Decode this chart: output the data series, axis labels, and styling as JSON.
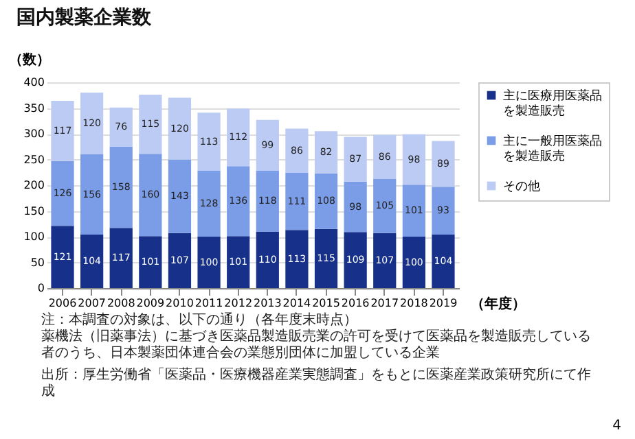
{
  "chart_data": {
    "type": "bar",
    "title": "国内製薬企業数",
    "ylabel": "（数）",
    "xlabel": "（年度）",
    "categories": [
      "2006",
      "2007",
      "2008",
      "2009",
      "2010",
      "2011",
      "2012",
      "2013",
      "2014",
      "2015",
      "2016",
      "2017",
      "2018",
      "2019"
    ],
    "stacked": true,
    "data_labels": true,
    "legend": "right",
    "grid": "y",
    "ylim": [
      0,
      400
    ],
    "yticks": [
      0,
      50,
      100,
      150,
      200,
      250,
      300,
      350,
      400
    ],
    "series": [
      {
        "name": "主に医療用医薬品を製造販売",
        "color": "#17318a",
        "values": [
          121,
          104,
          117,
          101,
          107,
          100,
          101,
          110,
          113,
          115,
          109,
          107,
          100,
          104
        ]
      },
      {
        "name": "主に一般用医薬品を製造販売",
        "color": "#7b9de8",
        "values": [
          126,
          156,
          158,
          160,
          143,
          128,
          136,
          118,
          111,
          108,
          98,
          105,
          101,
          93
        ]
      },
      {
        "name": "その他",
        "color": "#bccbf4",
        "values": [
          117,
          120,
          76,
          115,
          120,
          113,
          112,
          99,
          86,
          82,
          87,
          86,
          98,
          89
        ]
      }
    ],
    "annotations": [
      "注：本調査の対象は、以下の通り（各年度末時点）",
      "薬機法（旧薬事法）に基づき医薬品製造販売業の許可を受けて医薬品を製造販売している者のうち、日本製薬団体連合会の業態別団体に加盟している企業",
      "出所：厚生労働省「医薬品・医療機器産業実態調査」をもとに医薬産業政策研究所にて作成",
      "4"
    ]
  }
}
